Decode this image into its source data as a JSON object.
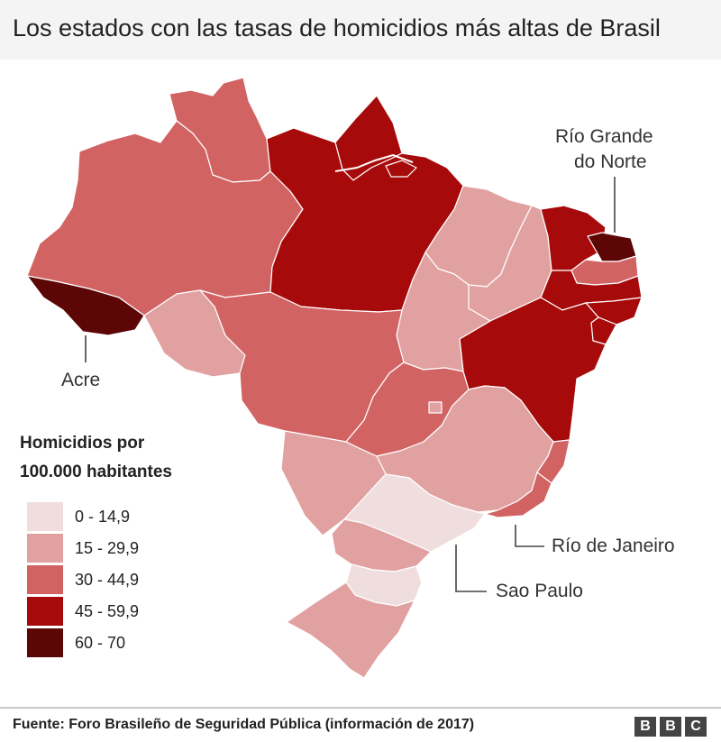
{
  "title": "Los estados con las tasas de homicidios más altas de Brasil",
  "legend": {
    "title_line1": "Homicidios por",
    "title_line2": "100.000 habitantes",
    "bins": [
      {
        "label": "0 - 14,9",
        "color": "#f0dede"
      },
      {
        "label": "15 - 29,9",
        "color": "#e2a1a1"
      },
      {
        "label": "30 - 44,9",
        "color": "#d26363"
      },
      {
        "label": "45 - 59,9",
        "color": "#a60a0a"
      },
      {
        "label": "60 - 70",
        "color": "#5c0606"
      }
    ]
  },
  "callouts": {
    "rio_grande_do_norte_line1": "Río Grande",
    "rio_grande_do_norte_line2": "do Norte",
    "acre": "Acre",
    "rio_de_janeiro": "Río de Janeiro",
    "sao_paulo": "Sao Paulo"
  },
  "states": [
    {
      "id": "AC",
      "bin": 4
    },
    {
      "id": "AM",
      "bin": 2
    },
    {
      "id": "RR",
      "bin": 2
    },
    {
      "id": "PA",
      "bin": 3
    },
    {
      "id": "AP",
      "bin": 3
    },
    {
      "id": "MA",
      "bin": 1
    },
    {
      "id": "PI",
      "bin": 1
    },
    {
      "id": "CE",
      "bin": 3
    },
    {
      "id": "RN",
      "bin": 4
    },
    {
      "id": "PB",
      "bin": 2
    },
    {
      "id": "PE",
      "bin": 3
    },
    {
      "id": "AL",
      "bin": 3
    },
    {
      "id": "SE",
      "bin": 3
    },
    {
      "id": "BA",
      "bin": 3
    },
    {
      "id": "TO",
      "bin": 1
    },
    {
      "id": "RO",
      "bin": 1
    },
    {
      "id": "MT",
      "bin": 2
    },
    {
      "id": "GO",
      "bin": 2
    },
    {
      "id": "DF",
      "bin": 1
    },
    {
      "id": "MG",
      "bin": 1
    },
    {
      "id": "ES",
      "bin": 2
    },
    {
      "id": "RJ",
      "bin": 2
    },
    {
      "id": "SP",
      "bin": 0
    },
    {
      "id": "MS",
      "bin": 1
    },
    {
      "id": "PR",
      "bin": 1
    },
    {
      "id": "SC",
      "bin": 0
    },
    {
      "id": "RS",
      "bin": 1
    }
  ],
  "source": "Fuente: Foro Brasileño de Seguridad Pública (información de 2017)",
  "brand": [
    "B",
    "B",
    "C"
  ]
}
